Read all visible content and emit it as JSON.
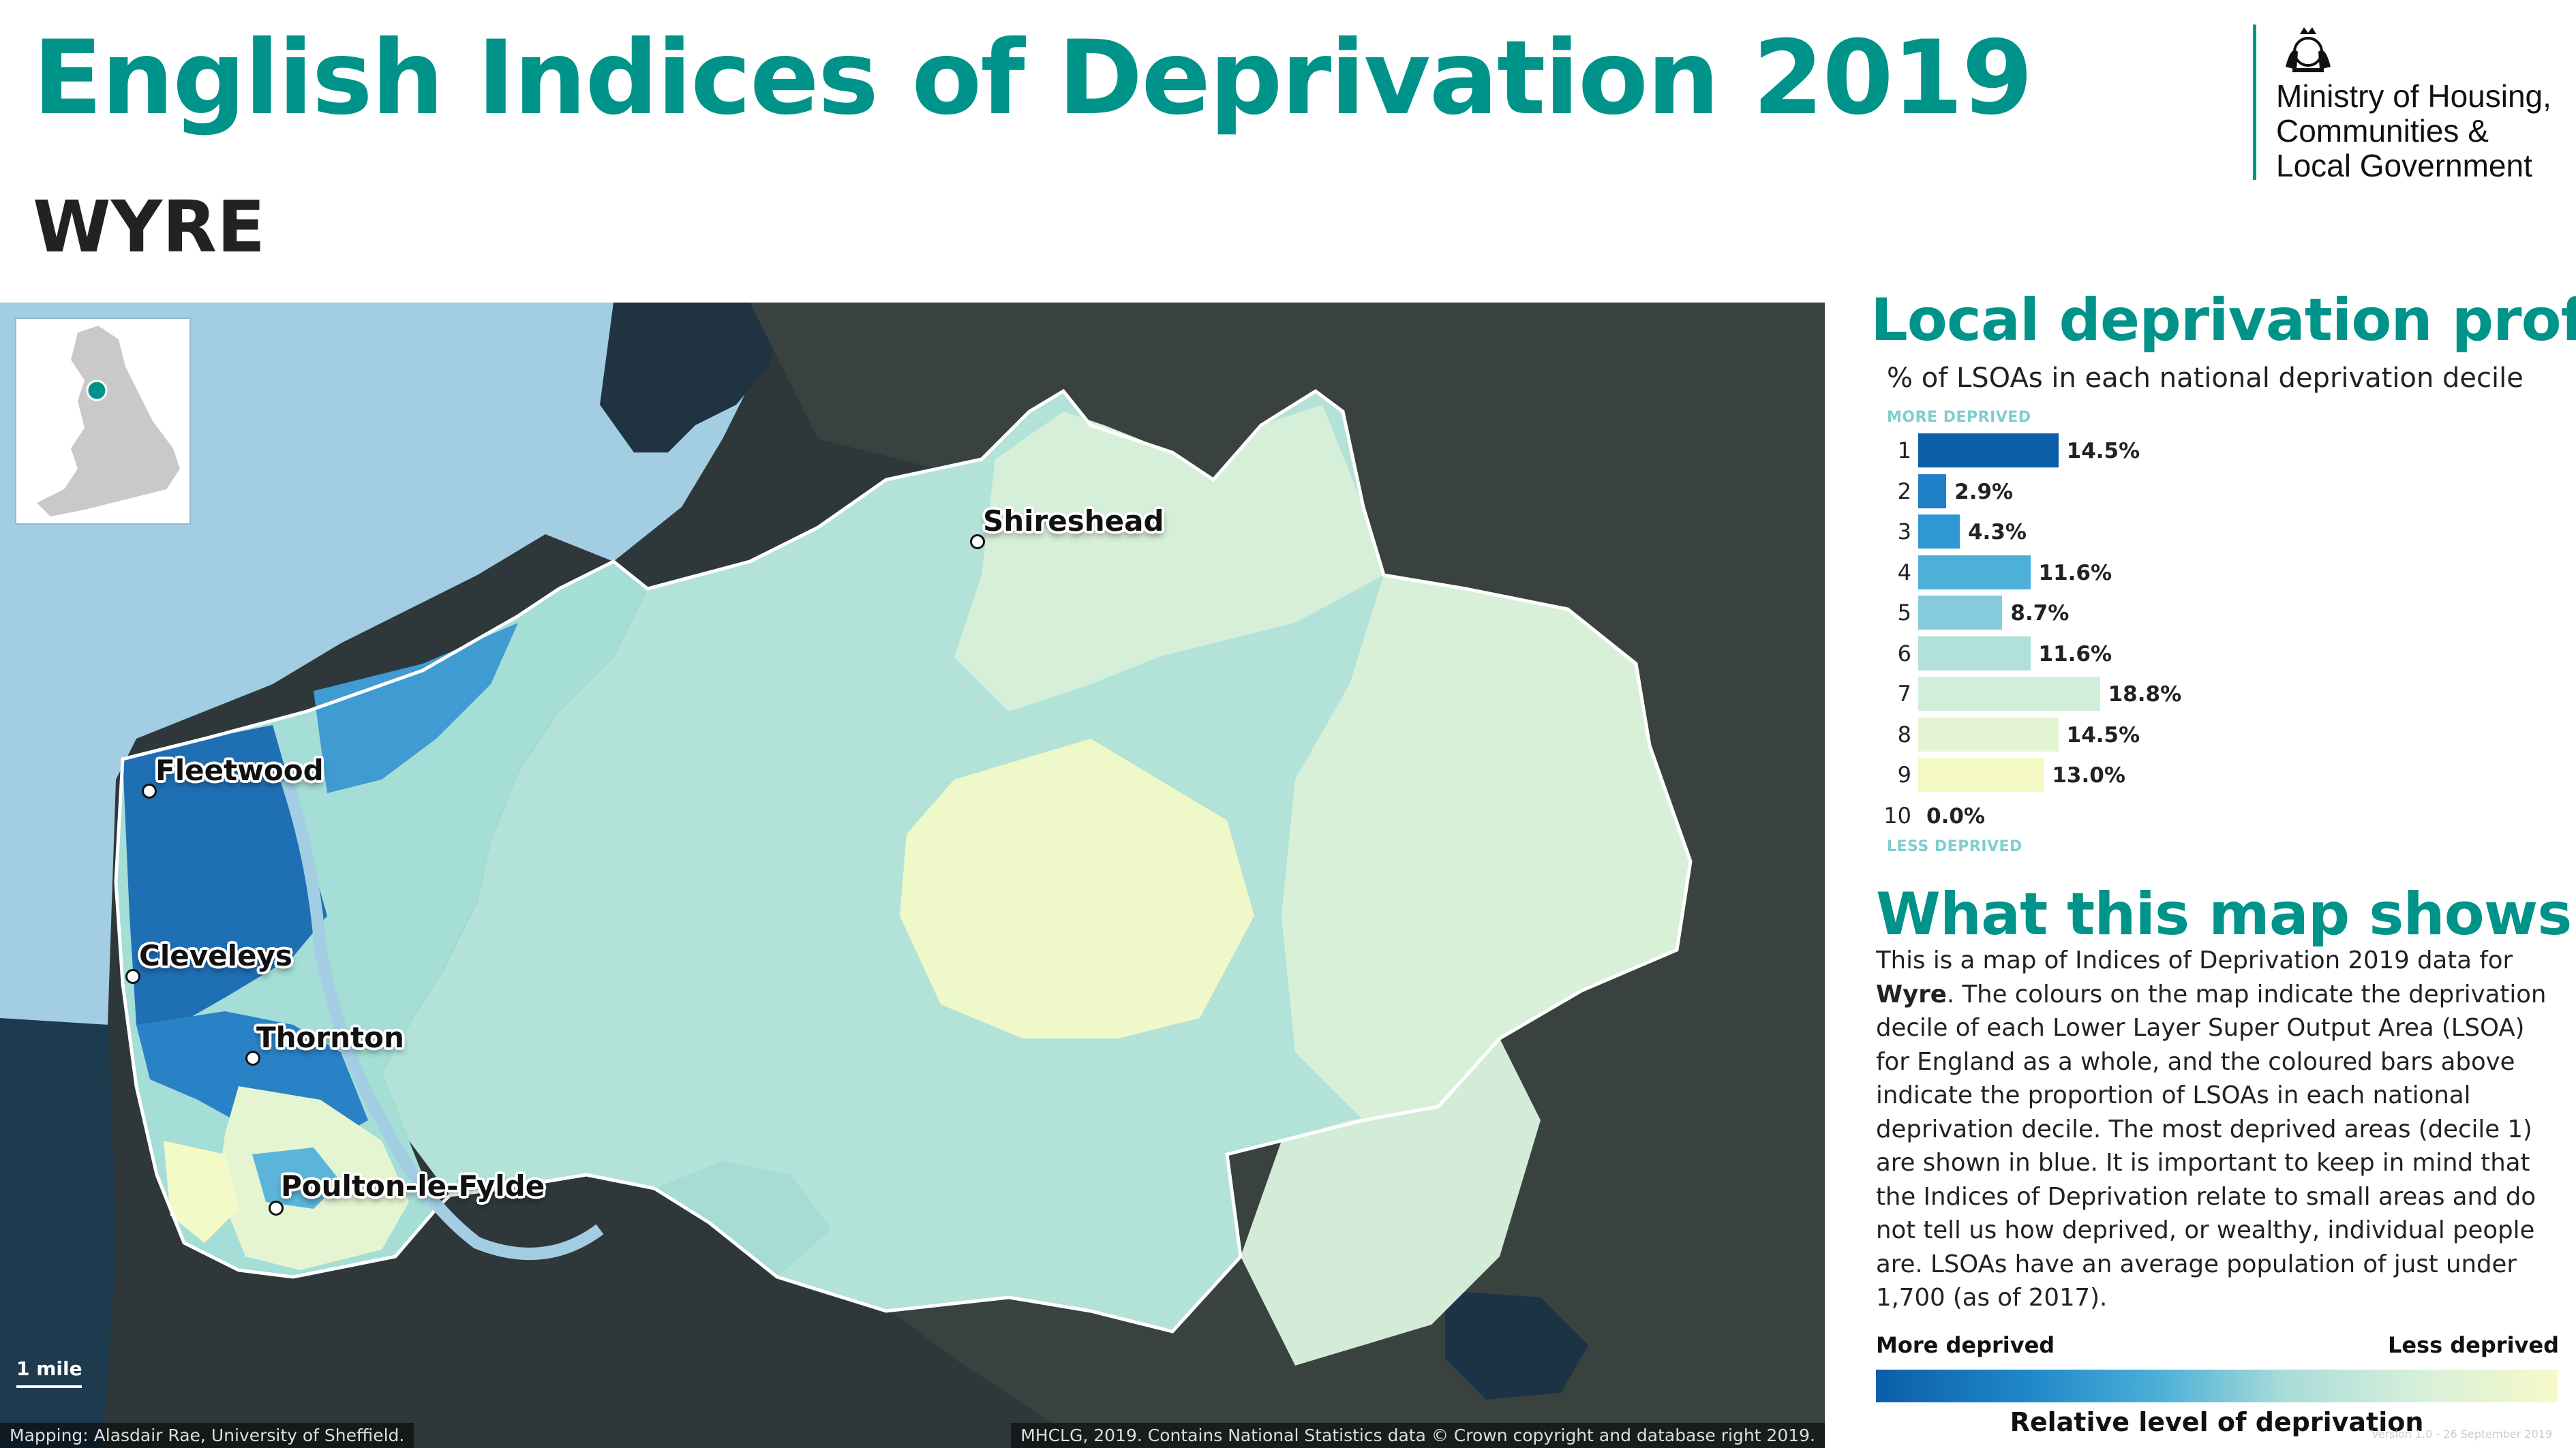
{
  "title": "English Indices of Deprivation 2019",
  "area_name": "WYRE",
  "logo": {
    "lines": [
      "Ministry of Housing,",
      "Communities &",
      "Local Government"
    ]
  },
  "map": {
    "places": [
      {
        "name": "Shireshead"
      },
      {
        "name": "Fleetwood"
      },
      {
        "name": "Cleveleys"
      },
      {
        "name": "Thornton"
      },
      {
        "name": "Poulton-le-Fylde"
      }
    ],
    "scale_label": "1 mile",
    "credit_left": "Mapping: Alasdair Rae, University of Sheffield.",
    "credit_right": "MHCLG, 2019. Contains National Statistics data © Crown copyright and database right 2019."
  },
  "profile": {
    "heading": "Local deprivation profile",
    "subheading": "% of LSOAs in each national deprivation decile",
    "more_label": "MORE DEPRIVED",
    "less_label": "LESS DEPRIVED"
  },
  "chart_data": {
    "type": "bar",
    "orientation": "horizontal",
    "categories": [
      "1",
      "2",
      "3",
      "4",
      "5",
      "6",
      "7",
      "8",
      "9",
      "10"
    ],
    "values": [
      14.5,
      2.9,
      4.3,
      11.6,
      8.7,
      11.6,
      18.8,
      14.5,
      13.0,
      0.0
    ],
    "labels": [
      "14.5%",
      "2.9%",
      "4.3%",
      "11.6%",
      "8.7%",
      "11.6%",
      "18.8%",
      "14.5%",
      "13.0%",
      "0.0%"
    ],
    "colors": [
      "#0b5ea8",
      "#1f7fc7",
      "#2f97d4",
      "#4cb0d9",
      "#85cbdc",
      "#b2e0da",
      "#d1eed9",
      "#e3f4d5",
      "#f4f9c5",
      "#fbfcd8"
    ],
    "xlabel": "",
    "ylabel": ""
  },
  "map_shows": {
    "heading": "What this map shows",
    "text_before": "This is a map of Indices of Deprivation 2019 data for ",
    "area_bold": "Wyre",
    "text_after": ". The colours on the map indicate the deprivation decile of each Lower Layer Super Output Area (LSOA) for England as a whole, and the coloured bars above indicate the proportion of LSOAs in each national deprivation decile. The most deprived areas (decile 1) are shown in blue. It is important to keep in mind that the Indices of Deprivation relate to small areas and do not tell us how deprived, or wealthy, individual people are. LSOAs have an average population of just under 1,700 (as of 2017)."
  },
  "legend": {
    "more": "More deprived",
    "less": "Less deprived",
    "caption": "Relative level of deprivation"
  },
  "version": "Version 1.0 - 26 September 2019"
}
